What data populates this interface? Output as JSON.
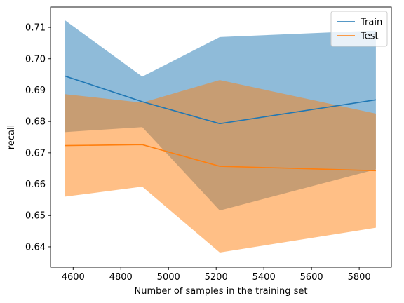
{
  "chart_data": {
    "type": "line",
    "title": "",
    "xlabel": "Number of samples in the training set",
    "ylabel": "recall",
    "xlim": [
      4505,
      5935
    ],
    "ylim": [
      0.6335,
      0.7165
    ],
    "xticks": [
      4600,
      4800,
      5000,
      5200,
      5400,
      5600,
      5800
    ],
    "yticks": [
      0.64,
      0.65,
      0.66,
      0.67,
      0.68,
      0.69,
      0.7,
      0.71
    ],
    "x": [
      4565,
      4890,
      5215,
      5870
    ],
    "legend_position": "top-right",
    "grid": false,
    "series": [
      {
        "name": "Train",
        "color": "#1f77b4",
        "band_opacity": 0.5,
        "values": [
          0.6945,
          0.6863,
          0.6793,
          0.6869
        ],
        "lower": [
          0.6766,
          0.6782,
          0.6516,
          0.6647
        ],
        "upper": [
          0.7123,
          0.6943,
          0.7069,
          0.709
        ]
      },
      {
        "name": "Test",
        "color": "#ff7f0e",
        "band_opacity": 0.5,
        "values": [
          0.6723,
          0.6726,
          0.6657,
          0.6643
        ],
        "lower": [
          0.656,
          0.6592,
          0.6382,
          0.6461
        ],
        "upper": [
          0.6887,
          0.686,
          0.6932,
          0.6825
        ]
      }
    ]
  }
}
